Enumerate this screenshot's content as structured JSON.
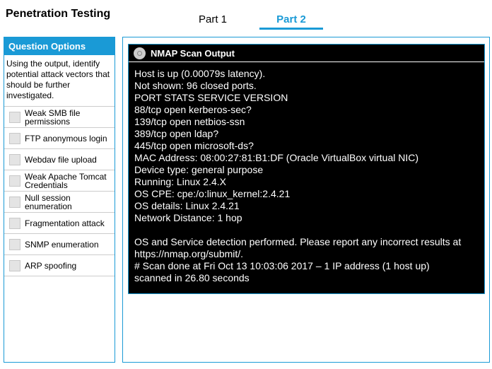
{
  "title": "Penetration Testing",
  "tabs": [
    {
      "label": "Part 1",
      "active": false
    },
    {
      "label": "Part 2",
      "active": true
    }
  ],
  "accent": "#1a9ad6",
  "options_panel": {
    "header": "Question Options",
    "instructions": "Using the output, identify potential attack vectors that should be further investigated.",
    "options": [
      {
        "label": "Weak SMB file permissions",
        "checked": false
      },
      {
        "label": "FTP anonymous login",
        "checked": false
      },
      {
        "label": "Webdav file upload",
        "checked": false
      },
      {
        "label": "Weak Apache Tomcat Credentials",
        "checked": false
      },
      {
        "label": "Null session enumeration",
        "checked": false
      },
      {
        "label": "Fragmentation attack",
        "checked": false
      },
      {
        "label": "SNMP enumeration",
        "checked": false
      },
      {
        "label": "ARP spoofing",
        "checked": false
      }
    ]
  },
  "output": {
    "header": "NMAP Scan Output",
    "icon": "disc-icon",
    "lines": [
      "Host is up (0.00079s latency).",
      "Not shown: 96 closed ports.",
      "PORT STATS SERVICE VERSION",
      "88/tcp open kerberos-sec?",
      "139/tcp open netbios-ssn",
      "389/tcp open ldap?",
      "445/tcp open microsoft-ds?",
      "MAC Address: 08:00:27:81:B1:DF (Oracle VirtualBox virtual NIC)",
      "Device type: general purpose",
      "Running: Linux 2.4.X",
      "OS CPE: cpe:/o:linux_kernel:2.4.21",
      "OS details: Linux 2.4.21",
      "Network Distance: 1 hop",
      "",
      "OS and Service detection performed. Please report any incorrect results at",
      "https://nmap.org/submit/.",
      "# Scan done at Fri Oct 13 10:03:06 2017 – 1 IP address (1 host up)",
      "scanned in 26.80 seconds"
    ]
  }
}
